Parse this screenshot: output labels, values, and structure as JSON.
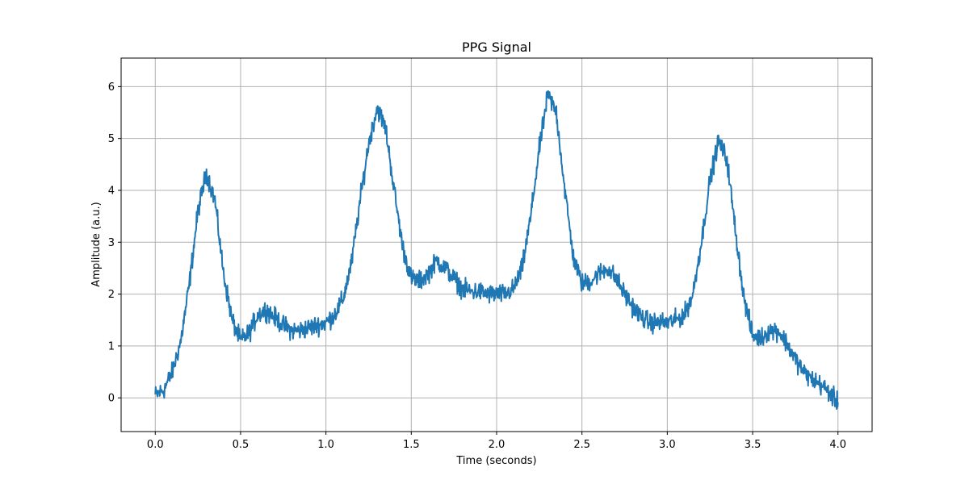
{
  "chart_data": {
    "type": "line",
    "title": "PPG Signal",
    "xlabel": "Time (seconds)",
    "ylabel": "Amplitude (a.u.)",
    "xlim": [
      -0.2,
      4.2
    ],
    "ylim": [
      -0.65,
      6.55
    ],
    "grid": true,
    "x_ticks": [
      0.0,
      0.5,
      1.0,
      1.5,
      2.0,
      2.5,
      3.0,
      3.5,
      4.0
    ],
    "x_tick_labels": [
      "0.0",
      "0.5",
      "1.0",
      "1.5",
      "2.0",
      "2.5",
      "3.0",
      "3.5",
      "4.0"
    ],
    "y_ticks": [
      0,
      1,
      2,
      3,
      4,
      5,
      6
    ],
    "y_tick_labels": [
      "0",
      "1",
      "2",
      "3",
      "4",
      "5",
      "6"
    ],
    "series": [
      {
        "name": "PPG",
        "color": "#1f77b4",
        "noise_amplitude": 0.14,
        "x": [
          0.0,
          0.05,
          0.1,
          0.15,
          0.2,
          0.25,
          0.3,
          0.35,
          0.4,
          0.45,
          0.5,
          0.55,
          0.6,
          0.65,
          0.7,
          0.75,
          0.8,
          0.85,
          0.9,
          0.95,
          1.0,
          1.05,
          1.1,
          1.15,
          1.2,
          1.25,
          1.3,
          1.35,
          1.4,
          1.45,
          1.5,
          1.55,
          1.6,
          1.65,
          1.7,
          1.75,
          1.8,
          1.85,
          1.9,
          1.95,
          2.0,
          2.05,
          2.1,
          2.15,
          2.2,
          2.25,
          2.3,
          2.35,
          2.4,
          2.45,
          2.5,
          2.55,
          2.6,
          2.65,
          2.7,
          2.75,
          2.8,
          2.85,
          2.9,
          2.95,
          3.0,
          3.05,
          3.1,
          3.15,
          3.2,
          3.25,
          3.3,
          3.35,
          3.4,
          3.45,
          3.5,
          3.55,
          3.6,
          3.65,
          3.7,
          3.75,
          3.8,
          3.85,
          3.9,
          3.95,
          4.0
        ],
        "y": [
          0.05,
          0.15,
          0.5,
          1.1,
          2.2,
          3.6,
          4.35,
          3.8,
          2.4,
          1.5,
          1.1,
          1.25,
          1.6,
          1.7,
          1.55,
          1.4,
          1.3,
          1.3,
          1.35,
          1.4,
          1.45,
          1.6,
          1.9,
          2.6,
          3.8,
          4.9,
          5.6,
          5.2,
          4.0,
          2.9,
          2.3,
          2.25,
          2.4,
          2.65,
          2.5,
          2.3,
          2.1,
          2.05,
          2.05,
          2.0,
          2.0,
          2.0,
          2.1,
          2.5,
          3.5,
          4.8,
          5.85,
          5.5,
          4.0,
          2.7,
          2.2,
          2.25,
          2.4,
          2.5,
          2.3,
          2.0,
          1.75,
          1.55,
          1.45,
          1.45,
          1.45,
          1.5,
          1.6,
          2.0,
          3.0,
          4.2,
          4.95,
          4.6,
          3.2,
          1.9,
          1.2,
          1.15,
          1.3,
          1.3,
          1.05,
          0.75,
          0.5,
          0.35,
          0.25,
          0.1,
          -0.1
        ]
      }
    ]
  }
}
